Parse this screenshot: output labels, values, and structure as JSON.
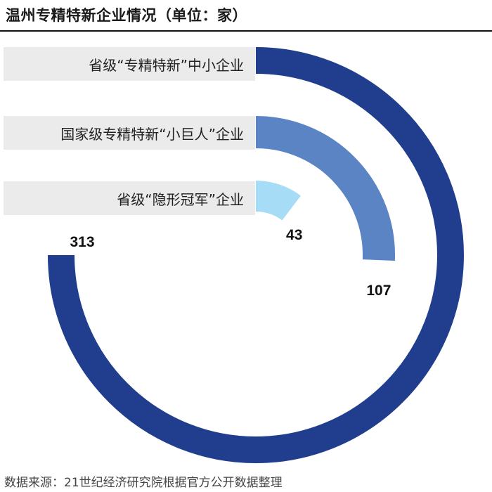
{
  "title": "温州专精特新企业情况（单位：家）",
  "source": "数据来源：21世纪经济研究院根据官方公开数据整理",
  "chart_data": {
    "type": "radial-bar",
    "max_value": 313,
    "series": [
      {
        "name": "省级“专精特新”中小企业",
        "value": 313,
        "color": "#213e8e"
      },
      {
        "name": "国家级专精特新“小巨人”企业",
        "value": 107,
        "color": "#5b84c4"
      },
      {
        "name": "省级“隐形冠军”企业",
        "value": 43,
        "color": "#a6dcf5"
      }
    ]
  }
}
